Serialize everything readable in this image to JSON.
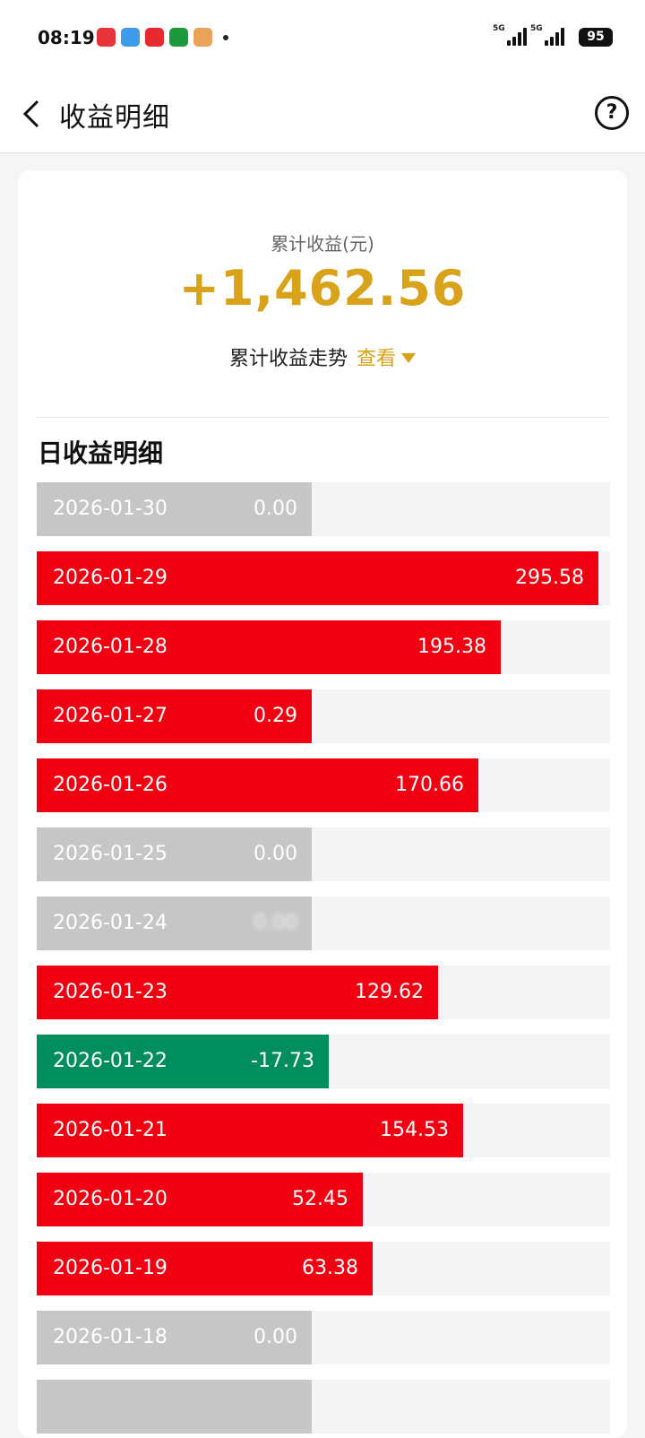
{
  "status_bar": {
    "time": "08:19",
    "app_icons": [
      {
        "name": "app-red-icon",
        "color": "#e8333a"
      },
      {
        "name": "weather-app-icon",
        "color": "#3d9be9"
      },
      {
        "name": "news-app-icon",
        "color": "#e8292d"
      },
      {
        "name": "green-app-icon",
        "color": "#1b9a3b"
      },
      {
        "name": "mascot-app-icon",
        "color": "#e8a25a"
      }
    ],
    "signal1_label": "5G",
    "signal2_label": "5G",
    "battery": "95"
  },
  "header": {
    "title": "收益明细",
    "back_icon": "chevron-left-icon",
    "help_icon": "question-circle-icon",
    "help_glyph": "?"
  },
  "summary": {
    "total_label": "累计收益(元)",
    "total_value": "+1,462.56",
    "trend_label": "累计收益走势",
    "trend_link": "查看",
    "accent_color": "#d9a21b"
  },
  "daily": {
    "title": "日收益明细",
    "colors": {
      "positive": "#f10011",
      "zero": "#c6c6c6",
      "negative": "#008e5c"
    },
    "rows": [
      {
        "date": "2026-01-30",
        "value": "0.00",
        "amount": 0,
        "fill": 0.48,
        "kind": "zero"
      },
      {
        "date": "2026-01-29",
        "value": "295.58",
        "amount": 295.58,
        "fill": 0.98,
        "kind": "pos"
      },
      {
        "date": "2026-01-28",
        "value": "195.38",
        "amount": 195.38,
        "fill": 0.81,
        "kind": "pos"
      },
      {
        "date": "2026-01-27",
        "value": "0.29",
        "amount": 0.29,
        "fill": 0.48,
        "kind": "pos"
      },
      {
        "date": "2026-01-26",
        "value": "170.66",
        "amount": 170.66,
        "fill": 0.77,
        "kind": "pos"
      },
      {
        "date": "2026-01-25",
        "value": "0.00",
        "amount": 0,
        "fill": 0.48,
        "kind": "zero"
      },
      {
        "date": "2026-01-24",
        "value": "0.00",
        "amount": 0,
        "fill": 0.48,
        "kind": "zero",
        "blurred": true
      },
      {
        "date": "2026-01-23",
        "value": "129.62",
        "amount": 129.62,
        "fill": 0.7,
        "kind": "pos"
      },
      {
        "date": "2026-01-22",
        "value": "-17.73",
        "amount": -17.73,
        "fill": 0.51,
        "kind": "neg"
      },
      {
        "date": "2026-01-21",
        "value": "154.53",
        "amount": 154.53,
        "fill": 0.744,
        "kind": "pos"
      },
      {
        "date": "2026-01-20",
        "value": "52.45",
        "amount": 52.45,
        "fill": 0.568,
        "kind": "pos"
      },
      {
        "date": "2026-01-19",
        "value": "63.38",
        "amount": 63.38,
        "fill": 0.586,
        "kind": "pos"
      },
      {
        "date": "2026-01-18",
        "value": "0.00",
        "amount": 0,
        "fill": 0.48,
        "kind": "zero"
      }
    ]
  }
}
